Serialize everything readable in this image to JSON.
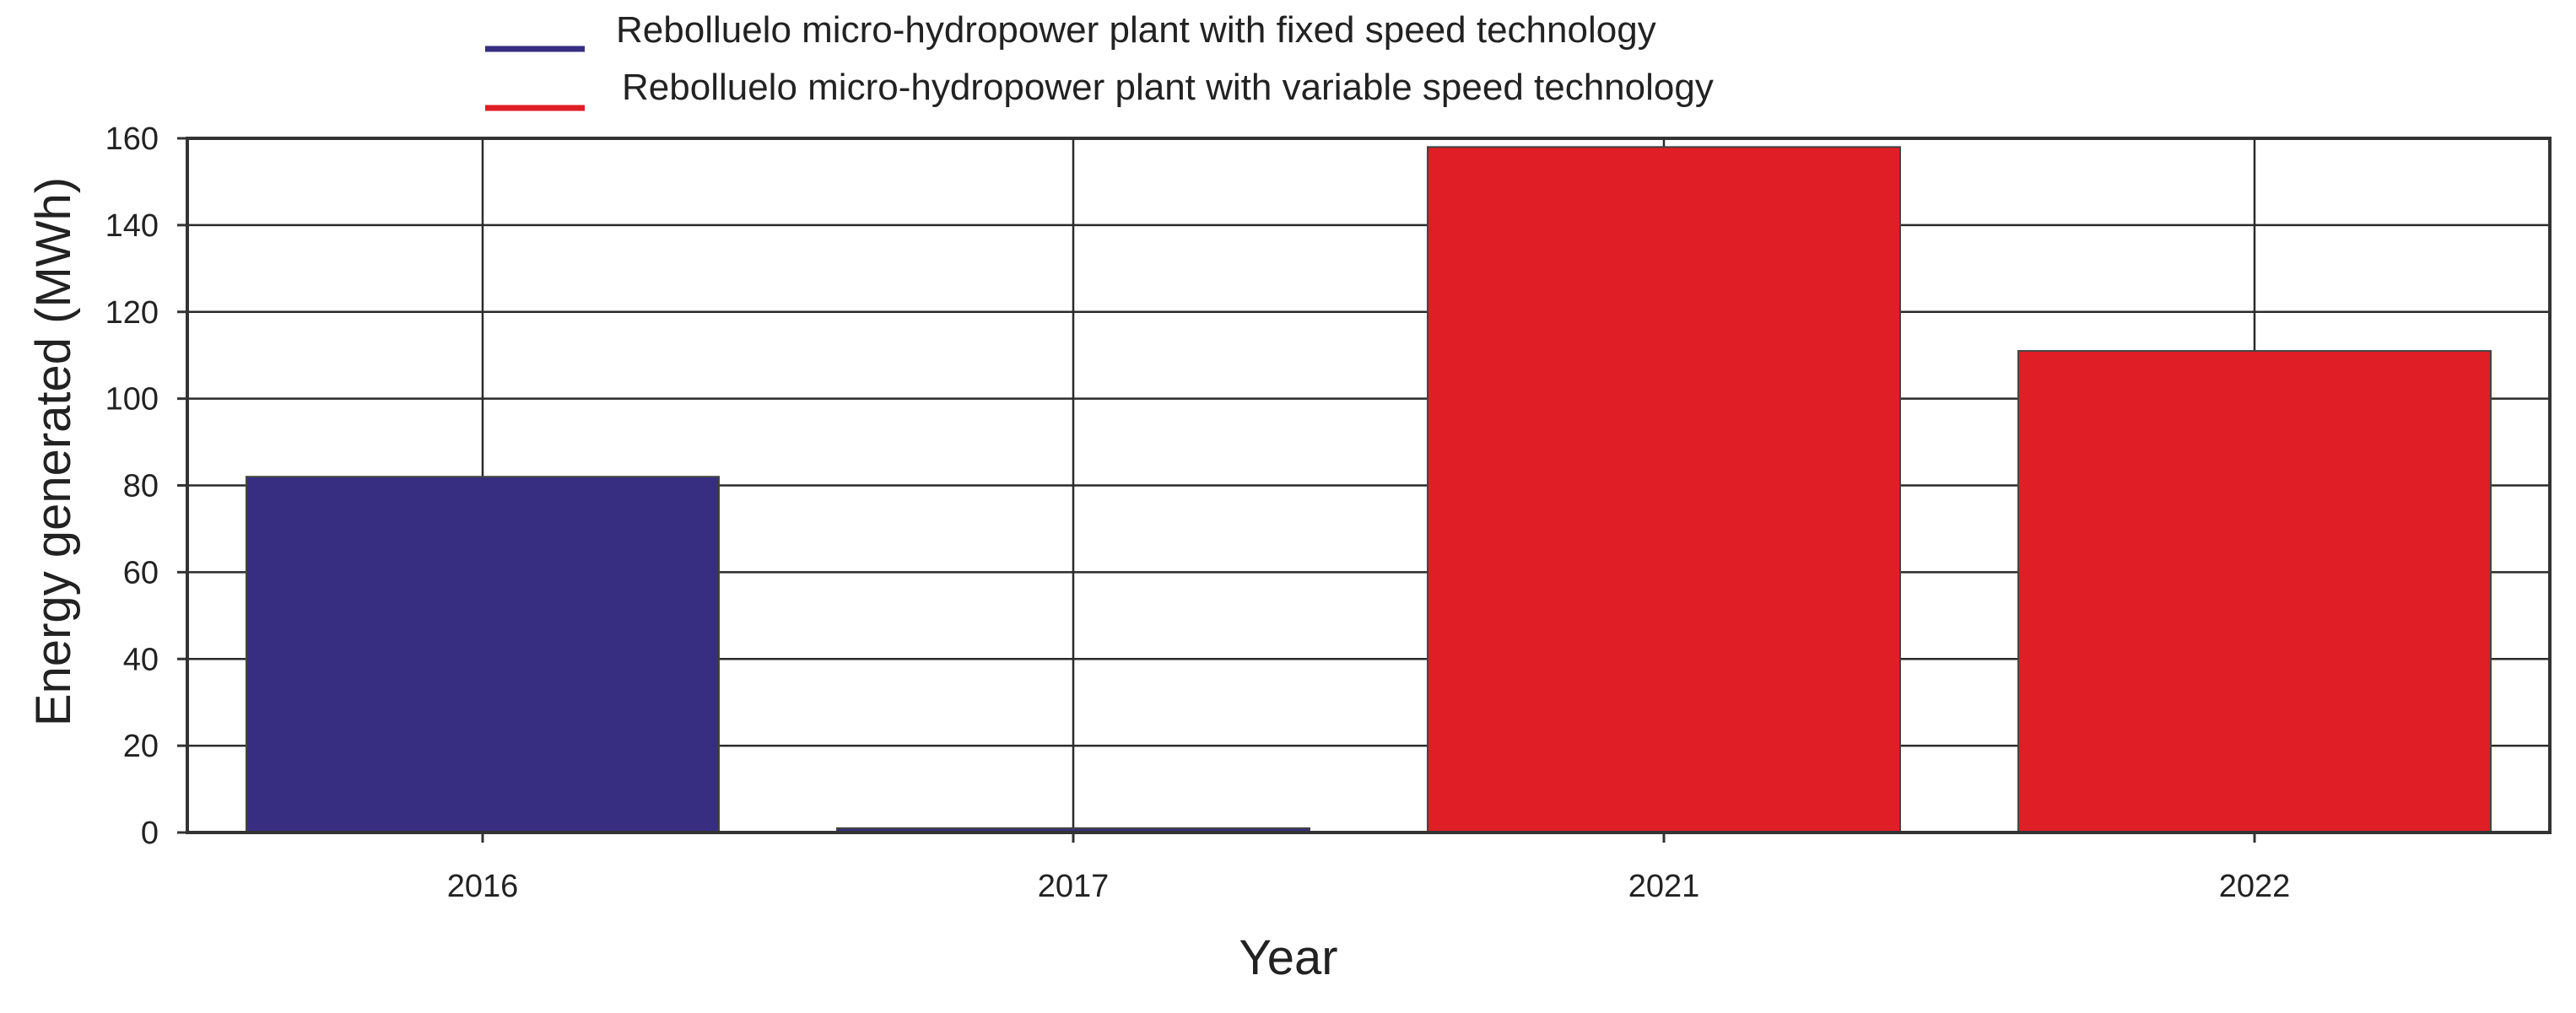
{
  "chart_data": {
    "type": "bar",
    "categories": [
      "2016",
      "2017",
      "2021",
      "2022"
    ],
    "series": [
      {
        "name": "Rebolluelo micro-hydropower plant with fixed speed technology",
        "color": "#372e82",
        "values": [
          82,
          1,
          null,
          null
        ]
      },
      {
        "name": "Rebolluelo micro-hydropower plant with variable speed technology",
        "color": "#e01e25",
        "values": [
          null,
          null,
          158,
          111
        ]
      }
    ],
    "xlabel": "Year",
    "ylabel": "Energy generated (MWh)",
    "ylim": [
      0,
      160
    ],
    "yticks": [
      0,
      20,
      40,
      60,
      80,
      100,
      120,
      140,
      160
    ],
    "grid": true,
    "legend_position": "top-center"
  }
}
